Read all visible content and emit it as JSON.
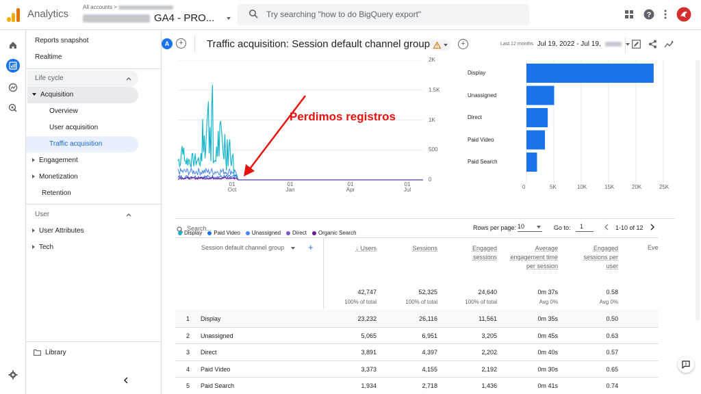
{
  "topbar": {
    "app_name": "Analytics",
    "account_label": "All accounts >",
    "property_name": "GA4 - PRO...",
    "search_placeholder": "Try searching \"how to do BigQuery export\""
  },
  "sidenav": {
    "reports_snapshot": "Reports snapshot",
    "realtime": "Realtime",
    "lifecycle": "Life cycle",
    "acquisition": "Acquisition",
    "overview": "Overview",
    "user_acquisition": "User acquisition",
    "traffic_acquisition": "Traffic acquisition",
    "engagement": "Engagement",
    "monetization": "Monetization",
    "retention": "Retention",
    "user": "User",
    "user_attributes": "User Attributes",
    "tech": "Tech",
    "library": "Library"
  },
  "header": {
    "compare_letter": "A",
    "title": "Traffic acquisition: Session default channel group",
    "period_label": "Last 12 months",
    "date_range": "Jul 19, 2022 - Jul 19,"
  },
  "annotation": "Perdimos registros",
  "chart_data": [
    {
      "type": "line",
      "x_ticks": [
        "01\nOct",
        "01\nJan",
        "01\nApr",
        "01\nJul"
      ],
      "y_ticks": [
        "0",
        "500",
        "1K",
        "1.5K",
        "2K"
      ],
      "ylim": [
        0,
        2000
      ],
      "series": [
        {
          "name": "Display",
          "color": "#12b5cb"
        },
        {
          "name": "Paid Video",
          "color": "#1a73e8"
        },
        {
          "name": "Unassigned",
          "color": "#4285f4"
        },
        {
          "name": "Direct",
          "color": "#7e57c2"
        },
        {
          "name": "Organic Search",
          "color": "#6a1b9a"
        }
      ],
      "legend": [
        "Display",
        "Paid Video",
        "Unassigned",
        "Direct",
        "Organic Search"
      ]
    },
    {
      "type": "bar",
      "orientation": "horizontal",
      "categories": [
        "Display",
        "Unassigned",
        "Direct",
        "Paid Video",
        "Paid Search"
      ],
      "values": [
        23232,
        5065,
        3891,
        3373,
        1934
      ],
      "x_ticks": [
        "0",
        "5K",
        "10K",
        "15K",
        "20K",
        "25K"
      ],
      "xlim": [
        0,
        25000
      ],
      "color": "#1a73e8"
    }
  ],
  "table_bar": {
    "search_placeholder": "Search...",
    "rows_per_page_label": "Rows per page:",
    "rows_per_page": "10",
    "goto_label": "Go to:",
    "goto_value": "1",
    "pagination": "1-10 of 12"
  },
  "table": {
    "dimension_header": "Session default channel group",
    "columns": [
      "Users",
      "Sessions",
      "Engaged sessions",
      "Average engagement time per session",
      "Engaged sessions per user",
      "Eve"
    ],
    "totals": [
      {
        "value": "42,747",
        "sub": "100% of total"
      },
      {
        "value": "52,325",
        "sub": "100% of total"
      },
      {
        "value": "24,640",
        "sub": "100% of total"
      },
      {
        "value": "0m 37s",
        "sub": "Avg 0%"
      },
      {
        "value": "0.58",
        "sub": "Avg 0%"
      }
    ],
    "rows": [
      {
        "n": "1",
        "channel": "Display",
        "users": "23,232",
        "sessions": "26,116",
        "engaged": "11,561",
        "avg_time": "0m 35s",
        "per_user": "0.50"
      },
      {
        "n": "2",
        "channel": "Unassigned",
        "users": "5,065",
        "sessions": "6,951",
        "engaged": "3,205",
        "avg_time": "0m 45s",
        "per_user": "0.63"
      },
      {
        "n": "3",
        "channel": "Direct",
        "users": "3,891",
        "sessions": "4,397",
        "engaged": "2,202",
        "avg_time": "0m 40s",
        "per_user": "0.57"
      },
      {
        "n": "4",
        "channel": "Paid Video",
        "users": "3,373",
        "sessions": "4,155",
        "engaged": "2,192",
        "avg_time": "0m 30s",
        "per_user": "0.65"
      },
      {
        "n": "5",
        "channel": "Paid Search",
        "users": "1,934",
        "sessions": "2,718",
        "engaged": "1,436",
        "avg_time": "0m 41s",
        "per_user": "0.74"
      }
    ]
  }
}
